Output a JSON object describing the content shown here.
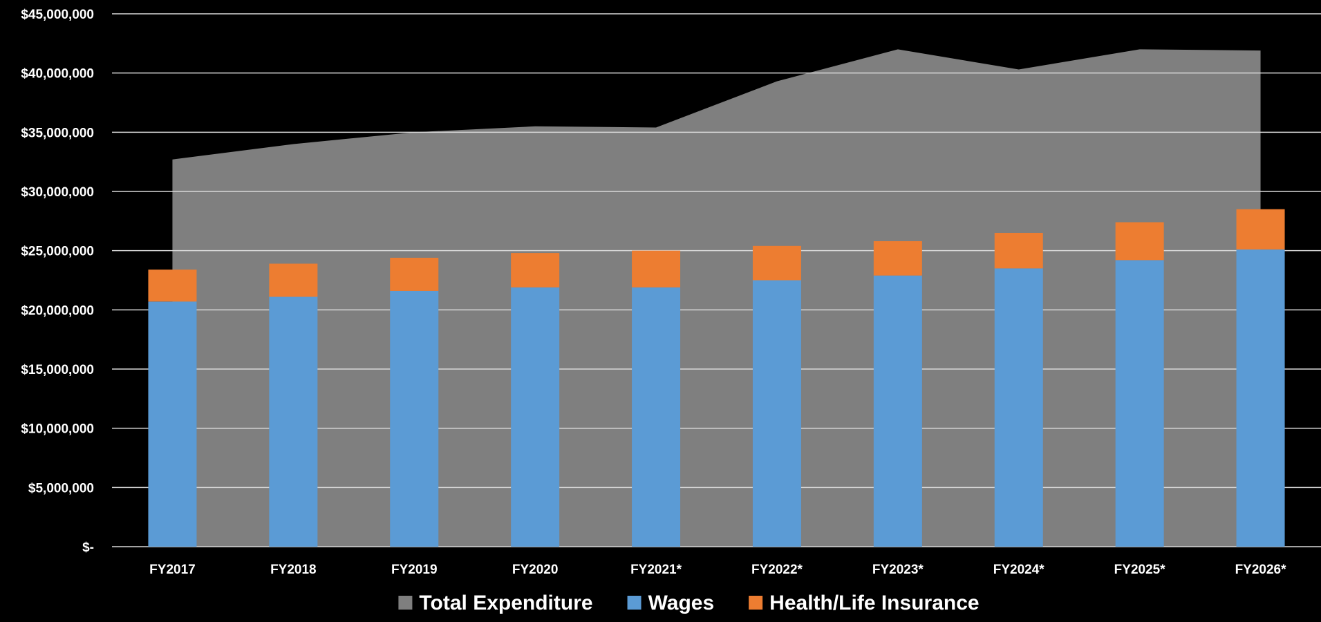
{
  "chart_data": {
    "type": "bar",
    "title": "",
    "xlabel": "",
    "ylabel": "",
    "categories": [
      "FY2017",
      "FY2018",
      "FY2019",
      "FY2020",
      "FY2021*",
      "FY2022*",
      "FY2023*",
      "FY2024*",
      "FY2025*",
      "FY2026*"
    ],
    "series": [
      {
        "name": "Total Expenditure",
        "kind": "area",
        "color": "#7f7f7f",
        "values": [
          32700000,
          34000000,
          35000000,
          35500000,
          35400000,
          39300000,
          42000000,
          40300000,
          42000000,
          41900000
        ]
      },
      {
        "name": "Wages",
        "kind": "stacked-bar",
        "color": "#5b9bd5",
        "values": [
          20700000,
          21100000,
          21600000,
          21900000,
          21900000,
          22500000,
          22900000,
          23500000,
          24200000,
          25100000
        ]
      },
      {
        "name": "Health/Life Insurance",
        "kind": "stacked-bar",
        "color": "#ed7d31",
        "values": [
          2700000,
          2800000,
          2800000,
          2900000,
          3100000,
          2900000,
          2900000,
          3000000,
          3200000,
          3400000
        ]
      }
    ],
    "ylim": [
      0,
      45000000
    ],
    "yticks": [
      0,
      5000000,
      10000000,
      15000000,
      20000000,
      25000000,
      30000000,
      35000000,
      40000000,
      45000000
    ],
    "ytick_labels": [
      "$-",
      "$5,000,000",
      "$10,000,000",
      "$15,000,000",
      "$20,000,000",
      "$25,000,000",
      "$30,000,000",
      "$35,000,000",
      "$40,000,000",
      "$45,000,000"
    ],
    "grid": true,
    "legend": {
      "position": "bottom",
      "entries": [
        "Total Expenditure",
        "Wages",
        "Health/Life Insurance"
      ]
    },
    "colors": {
      "background": "#000000",
      "gridline": "#d9d9d9",
      "text": "#ffffff"
    }
  }
}
